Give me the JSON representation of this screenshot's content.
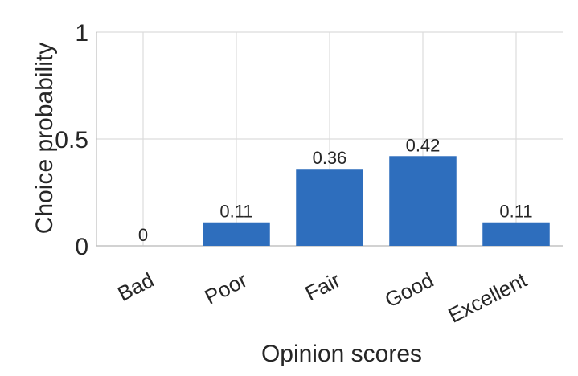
{
  "chart_data": {
    "type": "bar",
    "categories": [
      "Bad",
      "Poor",
      "Fair",
      "Good",
      "Excellent"
    ],
    "values": [
      0,
      0.11,
      0.36,
      0.42,
      0.11
    ],
    "data_labels": [
      "0",
      "0.11",
      "0.36",
      "0.42",
      "0.11"
    ],
    "title": "",
    "xlabel": "Opinion scores",
    "ylabel": "Choice probability",
    "ylim": [
      0,
      1
    ],
    "yticks": [
      0,
      0.5,
      1
    ],
    "ytick_labels": [
      "0",
      "0.5",
      "1"
    ],
    "grid": true,
    "bar_color": "#2e6ebd",
    "grid_color": "#dcdcdc",
    "text_color": "#262626"
  }
}
